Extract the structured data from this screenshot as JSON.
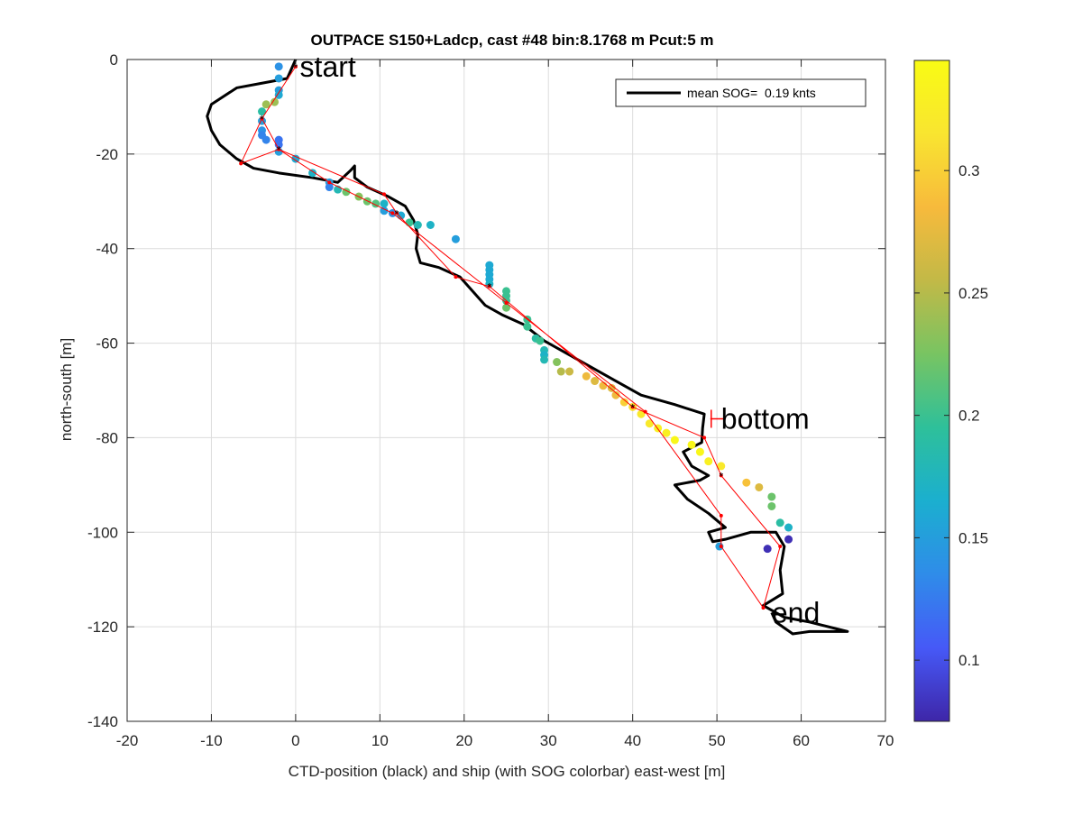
{
  "chart_data": {
    "type": "scatter",
    "title": "OUTPACE S150+Ladcp, cast #48 bin:8.1768 m  Pcut:5 m",
    "xlabel": "CTD-position (black) and ship (with SOG colorbar) east-west [m]",
    "ylabel": "north-south [m]",
    "xlim": [
      -20,
      70
    ],
    "ylim": [
      -140,
      0
    ],
    "xticks": [
      -20,
      -10,
      0,
      10,
      20,
      30,
      40,
      50,
      60,
      70
    ],
    "yticks": [
      -140,
      -120,
      -100,
      -80,
      -60,
      -40,
      -20,
      0
    ],
    "xtick_labels": [
      "-20",
      "-10",
      "0",
      "10",
      "20",
      "30",
      "40",
      "50",
      "60",
      "70"
    ],
    "ytick_labels": [
      "-140",
      "-120",
      "-100",
      "-80",
      "-60",
      "-40",
      "-20",
      "0"
    ],
    "grid": true,
    "legend": {
      "position": "top-right",
      "entries": [
        "mean SOG=  0.19 knts"
      ]
    },
    "annotations": [
      {
        "text": "start",
        "x": 0.5,
        "y": -1.5
      },
      {
        "text": "bottom",
        "x": 50.5,
        "y": -76
      },
      {
        "text": "end",
        "x": 56.5,
        "y": -117
      }
    ],
    "colorbar": {
      "min": 0.075,
      "max": 0.345,
      "ticks": [
        0.1,
        0.15,
        0.2,
        0.25,
        0.3
      ],
      "tick_labels": [
        "0.1",
        "0.15",
        "0.2",
        "0.25",
        "0.3"
      ],
      "colormap": [
        "#3e26a8",
        "#4659f7",
        "#2f8ce9",
        "#1bafcf",
        "#2ec09a",
        "#78c462",
        "#c2b947",
        "#f7ba3c",
        "#f9e530",
        "#f9fb14"
      ]
    },
    "series": [
      {
        "name": "mean SOG=  0.19 knts",
        "kind": "ctd_track",
        "color": "#000000",
        "points": [
          [
            0,
            0
          ],
          [
            -0.5,
            -2
          ],
          [
            -1,
            -4
          ],
          [
            -4,
            -5
          ],
          [
            -7,
            -6
          ],
          [
            -10,
            -9.5
          ],
          [
            -10.5,
            -12
          ],
          [
            -10,
            -15
          ],
          [
            -9,
            -18
          ],
          [
            -7,
            -21
          ],
          [
            -5,
            -23
          ],
          [
            -2,
            -24
          ],
          [
            2,
            -25
          ],
          [
            5,
            -26
          ],
          [
            6.5,
            -23.5
          ],
          [
            7,
            -22.5
          ],
          [
            7,
            -25
          ],
          [
            8.5,
            -27
          ],
          [
            11,
            -29
          ],
          [
            13,
            -31
          ],
          [
            14,
            -34
          ],
          [
            14.5,
            -37
          ],
          [
            14.3,
            -40
          ],
          [
            14.8,
            -43
          ],
          [
            17,
            -44
          ],
          [
            19.5,
            -46
          ],
          [
            21,
            -49
          ],
          [
            22.5,
            -52
          ],
          [
            24.5,
            -54
          ],
          [
            27,
            -56
          ],
          [
            29.5,
            -59.5
          ],
          [
            32,
            -62
          ],
          [
            35,
            -65
          ],
          [
            38,
            -68
          ],
          [
            41,
            -71
          ],
          [
            45,
            -73
          ],
          [
            48.5,
            -75
          ],
          [
            48.3,
            -78
          ],
          [
            48.2,
            -81
          ],
          [
            46,
            -83
          ],
          [
            47,
            -86
          ],
          [
            49,
            -88
          ],
          [
            48,
            -89
          ],
          [
            45,
            -90
          ],
          [
            46.5,
            -93
          ],
          [
            49,
            -96
          ],
          [
            51,
            -99
          ],
          [
            49,
            -100
          ],
          [
            49.5,
            -102
          ],
          [
            51,
            -101.5
          ],
          [
            54,
            -100
          ],
          [
            57,
            -100
          ],
          [
            58,
            -103
          ],
          [
            57.5,
            -108
          ],
          [
            57.8,
            -113
          ],
          [
            55.5,
            -115.5
          ],
          [
            58,
            -118
          ],
          [
            61,
            -119
          ],
          [
            65.5,
            -121
          ],
          [
            61,
            -121
          ],
          [
            59,
            -121.5
          ],
          [
            57,
            -119
          ],
          [
            56.5,
            -117
          ]
        ]
      },
      {
        "kind": "ship_sog_points",
        "points": [
          [
            -2,
            -1.5,
            0.14
          ],
          [
            -2,
            -4,
            0.15
          ],
          [
            -2,
            -6.5,
            0.15
          ],
          [
            -2,
            -7.5,
            0.16
          ],
          [
            -2.5,
            -9,
            0.24
          ],
          [
            -3.5,
            -9.5,
            0.24
          ],
          [
            -4,
            -11,
            0.19
          ],
          [
            -4,
            -13,
            0.15
          ],
          [
            -4,
            -15,
            0.14
          ],
          [
            -4,
            -16,
            0.13
          ],
          [
            -3.5,
            -17,
            0.13
          ],
          [
            -2,
            -17,
            0.12
          ],
          [
            -2,
            -18,
            0.12
          ],
          [
            -2,
            -19.5,
            0.15
          ],
          [
            0,
            -21,
            0.16
          ],
          [
            2,
            -24,
            0.17
          ],
          [
            4,
            -26,
            0.15
          ],
          [
            4,
            -27,
            0.13
          ],
          [
            5,
            -27.5,
            0.18
          ],
          [
            6,
            -28,
            0.22
          ],
          [
            7.5,
            -29,
            0.23
          ],
          [
            8.5,
            -30,
            0.22
          ],
          [
            9.5,
            -30.5,
            0.21
          ],
          [
            10.5,
            -30.5,
            0.17
          ],
          [
            10.5,
            -32,
            0.15
          ],
          [
            11.5,
            -32.5,
            0.14
          ],
          [
            12.5,
            -33,
            0.16
          ],
          [
            13.5,
            -34.5,
            0.2
          ],
          [
            14.5,
            -35,
            0.18
          ],
          [
            16,
            -35,
            0.17
          ],
          [
            19,
            -38,
            0.15
          ],
          [
            23,
            -43.5,
            0.16
          ],
          [
            23,
            -44.5,
            0.16
          ],
          [
            23,
            -45.5,
            0.16
          ],
          [
            23,
            -46.5,
            0.16
          ],
          [
            23,
            -47.5,
            0.17
          ],
          [
            25,
            -49,
            0.2
          ],
          [
            25,
            -50,
            0.2
          ],
          [
            25,
            -51,
            0.2
          ],
          [
            25,
            -52.5,
            0.22
          ],
          [
            27.5,
            -55,
            0.2
          ],
          [
            27.5,
            -56.5,
            0.2
          ],
          [
            28.5,
            -59,
            0.19
          ],
          [
            29,
            -59.5,
            0.2
          ],
          [
            29.5,
            -61.5,
            0.18
          ],
          [
            29.5,
            -62.5,
            0.17
          ],
          [
            29.5,
            -63.5,
            0.18
          ],
          [
            31,
            -64,
            0.23
          ],
          [
            31.5,
            -66,
            0.25
          ],
          [
            32.5,
            -66,
            0.26
          ],
          [
            34.5,
            -67,
            0.28
          ],
          [
            35.5,
            -68,
            0.27
          ],
          [
            36.5,
            -69,
            0.28
          ],
          [
            37.5,
            -69.5,
            0.27
          ],
          [
            38,
            -71,
            0.28
          ],
          [
            39,
            -72.5,
            0.3
          ],
          [
            40,
            -73.5,
            0.31
          ],
          [
            41,
            -75,
            0.32
          ],
          [
            42,
            -77,
            0.32
          ],
          [
            43,
            -78,
            0.33
          ],
          [
            44,
            -79,
            0.33
          ],
          [
            45,
            -80.5,
            0.34
          ],
          [
            47,
            -81.5,
            0.34
          ],
          [
            48,
            -83,
            0.34
          ],
          [
            49,
            -85,
            0.33
          ],
          [
            50.5,
            -86,
            0.32
          ],
          [
            53.5,
            -89.5,
            0.29
          ],
          [
            55,
            -90.5,
            0.27
          ],
          [
            56.5,
            -92.5,
            0.22
          ],
          [
            56.5,
            -94.5,
            0.22
          ],
          [
            57.5,
            -98,
            0.19
          ],
          [
            58.5,
            -99,
            0.17
          ],
          [
            58.5,
            -101.5,
            0.08
          ],
          [
            56,
            -103.5,
            0.08
          ],
          [
            50.3,
            -103,
            0.15
          ]
        ]
      },
      {
        "kind": "bin_track",
        "color": "#ff0000",
        "points": [
          [
            0,
            -1.5
          ],
          [
            -4,
            -12.5
          ],
          [
            -6.5,
            -22
          ],
          [
            -2,
            -19
          ],
          [
            10.5,
            -28.5
          ],
          [
            12,
            -32.5
          ],
          [
            19,
            -46
          ],
          [
            23,
            -48
          ],
          [
            40,
            -73.5
          ],
          [
            48.5,
            -80
          ],
          [
            50.5,
            -88
          ],
          [
            57.5,
            -103
          ],
          [
            55.5,
            -116
          ],
          [
            50.5,
            -103
          ],
          [
            50.5,
            -96.5
          ],
          [
            41.5,
            -74.5
          ],
          [
            25,
            -51.5
          ],
          [
            11.5,
            -32.5
          ],
          [
            4,
            -26
          ],
          [
            -2,
            -19
          ],
          [
            -4,
            -12.5
          ],
          [
            0,
            -1.5
          ]
        ]
      },
      {
        "kind": "bin_markers",
        "points": [
          [
            0,
            -1.5
          ],
          [
            -4,
            -12.5
          ],
          [
            -2,
            -19
          ],
          [
            12,
            -32.5
          ],
          [
            23,
            -48
          ],
          [
            40,
            -73.5
          ],
          [
            50.5,
            -88
          ]
        ]
      }
    ]
  }
}
